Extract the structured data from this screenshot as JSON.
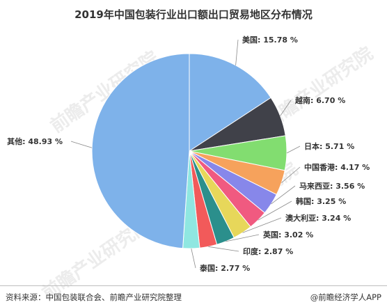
{
  "title": "2019年中国包装行业出口额出口贸易地区分布情况",
  "footer": {
    "source": "资料来源：中国包装联合会、前瞻产业研究院整理",
    "brand": "@前瞻经济学人APP"
  },
  "watermark": "前瞻产业研究院",
  "chart_data": {
    "type": "pie",
    "title": "2019年中国包装行业出口额出口贸易地区分布情况",
    "slices": [
      {
        "label": "美国",
        "value": 15.78,
        "display": "美国: 15.78 %",
        "color": "#7eb2ea"
      },
      {
        "label": "越南",
        "value": 6.7,
        "display": "越南: 6.70 %",
        "color": "#404149"
      },
      {
        "label": "日本",
        "value": 5.71,
        "display": "日本: 5.71 %",
        "color": "#82dd70"
      },
      {
        "label": "中国香港",
        "value": 4.17,
        "display": "中国香港: 4.17 %",
        "color": "#f6a25c"
      },
      {
        "label": "马来西亚",
        "value": 3.56,
        "display": "马来西亚: 3.56 %",
        "color": "#8787ea"
      },
      {
        "label": "韩国",
        "value": 3.25,
        "display": "韩国: 3.25 %",
        "color": "#f05a80"
      },
      {
        "label": "澳大利亚",
        "value": 3.24,
        "display": "澳大利亚: 3.24 %",
        "color": "#e7d75a"
      },
      {
        "label": "英国",
        "value": 3.02,
        "display": "英国: 3.02 %",
        "color": "#2b8f8c"
      },
      {
        "label": "印度",
        "value": 2.87,
        "display": "印度: 2.87 %",
        "color": "#f25a5a"
      },
      {
        "label": "泰国",
        "value": 2.77,
        "display": "泰国: 2.77 %",
        "color": "#8fe7e1"
      },
      {
        "label": "其他",
        "value": 48.93,
        "display": "其他: 48.93 %",
        "color": "#7eb2ea"
      }
    ]
  }
}
